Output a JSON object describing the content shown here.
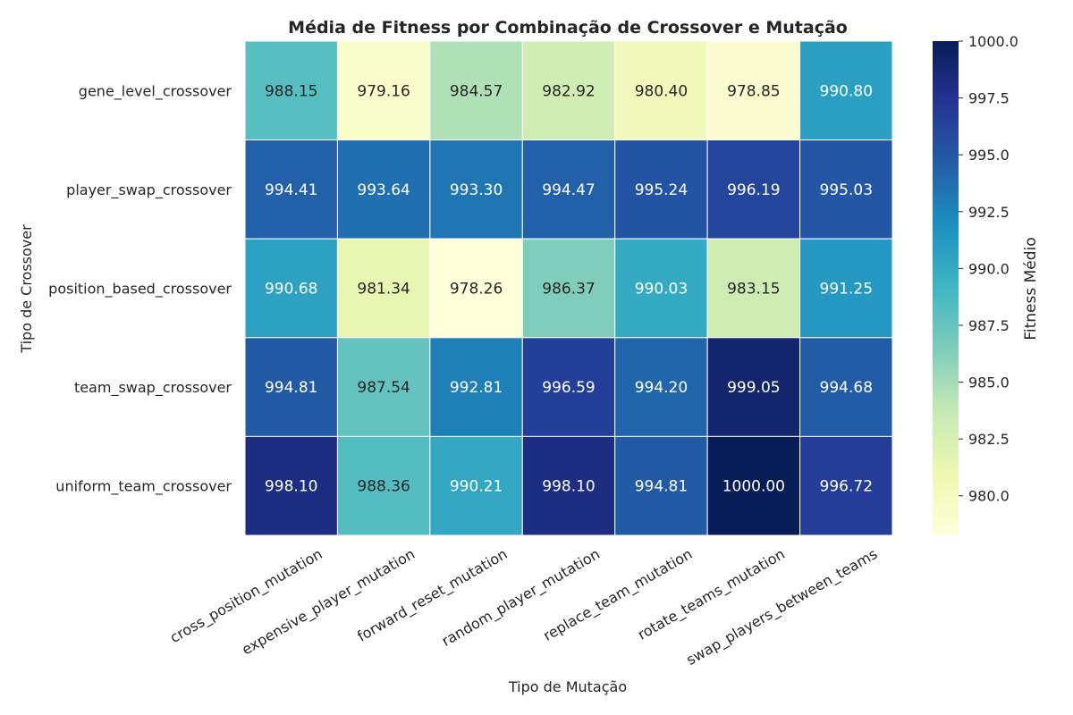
{
  "chart_data": {
    "type": "heatmap",
    "title": "Média de Fitness por Combinação de Crossover e Mutação",
    "xlabel": "Tipo de Mutação",
    "ylabel": "Tipo de Crossover",
    "colorbar_label": "Fitness Médio",
    "x_categories": [
      "cross_position_mutation",
      "expensive_player_mutation",
      "forward_reset_mutation",
      "random_player_mutation",
      "replace_team_mutation",
      "rotate_teams_mutation",
      "swap_players_between_teams"
    ],
    "y_categories": [
      "gene_level_crossover",
      "player_swap_crossover",
      "position_based_crossover",
      "team_swap_crossover",
      "uniform_team_crossover"
    ],
    "values": [
      [
        988.15,
        979.16,
        984.57,
        982.92,
        980.4,
        978.85,
        990.8
      ],
      [
        994.41,
        993.64,
        993.3,
        994.47,
        995.24,
        996.19,
        995.03
      ],
      [
        990.68,
        981.34,
        978.26,
        986.37,
        990.03,
        983.15,
        991.25
      ],
      [
        994.81,
        987.54,
        992.81,
        996.59,
        994.2,
        999.05,
        994.68
      ],
      [
        998.1,
        988.36,
        990.21,
        998.1,
        994.81,
        1000.0,
        996.72
      ]
    ],
    "value_range": [
      978.26,
      1000.0
    ],
    "colorbar_ticks": [
      "980.0",
      "982.5",
      "985.0",
      "987.5",
      "990.0",
      "992.5",
      "995.0",
      "997.5",
      "1000.0"
    ],
    "colormap": "YlGnBu",
    "colormap_stops": [
      "#ffffd9",
      "#edf8b1",
      "#c7e9b4",
      "#7fcdbb",
      "#41b6c4",
      "#1d91c0",
      "#225ea8",
      "#253494",
      "#081d58"
    ],
    "grid": false
  }
}
